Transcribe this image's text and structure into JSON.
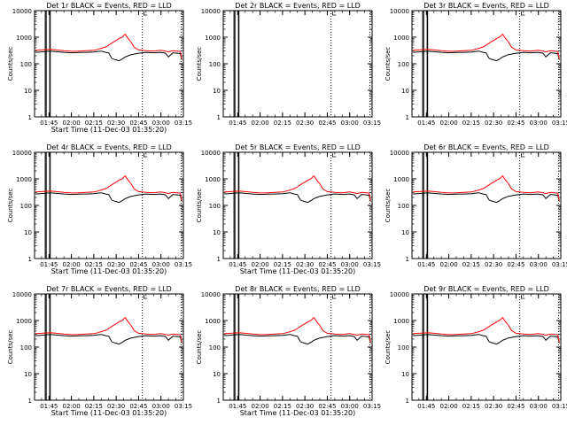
{
  "figure": {
    "panels": [
      {
        "title": "Det 1r  BLACK = Events, RED = LLD",
        "show_xlabel": true,
        "has_data": true,
        "has_red": true
      },
      {
        "title": "Det 2r  BLACK = Events, RED = LLD",
        "show_xlabel": false,
        "has_data": false,
        "has_red": false
      },
      {
        "title": "Det 3r  BLACK = Events, RED = LLD",
        "show_xlabel": false,
        "has_data": true,
        "has_red": true
      },
      {
        "title": "Det 4r  BLACK = Events, RED = LLD",
        "show_xlabel": true,
        "has_data": true,
        "has_red": true
      },
      {
        "title": "Det 5r  BLACK = Events, RED = LLD",
        "show_xlabel": true,
        "has_data": true,
        "has_red": true
      },
      {
        "title": "Det 6r  BLACK = Events, RED = LLD",
        "show_xlabel": false,
        "has_data": true,
        "has_red": true
      },
      {
        "title": "Det 7r  BLACK = Events, RED = LLD",
        "show_xlabel": true,
        "has_data": true,
        "has_red": true
      },
      {
        "title": "Det 8r  BLACK = Events, RED = LLD",
        "show_xlabel": true,
        "has_data": true,
        "has_red": true
      },
      {
        "title": "Det 9r  BLACK = Events, RED = LLD",
        "show_xlabel": false,
        "has_data": true,
        "has_red": true
      }
    ],
    "ylabel": "Counts/sec",
    "xlabel": "Start Time (11-Dec-03 01:35:20)",
    "colors": {
      "events": "#000000",
      "lld": "#ff0000",
      "axes": "#000000"
    }
  },
  "chart_data": {
    "type": "line",
    "yscale": "log",
    "ylim": [
      1,
      10000
    ],
    "ytick_labels": [
      "1",
      "10",
      "100",
      "1000",
      "10000"
    ],
    "xlim": [
      "01:35:20",
      "03:15:00"
    ],
    "xtick_labels": [
      "01:45",
      "02:00",
      "02:15",
      "02:30",
      "02:45",
      "03:00",
      "03:15"
    ],
    "grid": false,
    "vertical_markers": [
      {
        "time": "01:42:30",
        "style": "solid"
      },
      {
        "time": "01:43:10",
        "style": "solid"
      },
      {
        "time": "01:45:30",
        "style": "solid"
      },
      {
        "time": "01:45:50",
        "style": "solid"
      },
      {
        "time": "02:47:30",
        "style": "dotted"
      },
      {
        "time": "03:13:30",
        "style": "dotted"
      }
    ],
    "series": [
      {
        "name": "Events",
        "color": "#000000",
        "x": [
          "01:36:00",
          "01:40:00",
          "01:43:00",
          "01:46:00",
          "01:50:00",
          "01:55:00",
          "02:00:00",
          "02:05:00",
          "02:10:00",
          "02:15:00",
          "02:18:00",
          "02:20:00",
          "02:23:00",
          "02:25:00",
          "02:27:00",
          "02:28:00",
          "02:30:00",
          "02:32:00",
          "02:34:00",
          "02:36:00",
          "02:38:00",
          "02:40:00",
          "02:42:00",
          "02:45:00",
          "02:50:00",
          "02:55:00",
          "03:00:00",
          "03:03:00",
          "03:05:00",
          "03:08:00",
          "03:11:00",
          "03:13:00",
          "03:14:00"
        ],
        "y": [
          270,
          280,
          290,
          300,
          285,
          270,
          260,
          265,
          270,
          275,
          290,
          300,
          270,
          255,
          160,
          150,
          140,
          130,
          150,
          180,
          200,
          220,
          230,
          250,
          270,
          260,
          270,
          250,
          180,
          260,
          250,
          240,
          140
        ]
      },
      {
        "name": "LLD",
        "color": "#ff0000",
        "x": [
          "01:36:00",
          "01:40:00",
          "01:43:00",
          "01:46:00",
          "01:50:00",
          "01:55:00",
          "02:00:00",
          "02:05:00",
          "02:10:00",
          "02:15:00",
          "02:18:00",
          "02:20:00",
          "02:23:00",
          "02:25:00",
          "02:27:00",
          "02:28:00",
          "02:30:00",
          "02:32:00",
          "02:34:00",
          "02:36:00",
          "02:38:00",
          "02:40:00",
          "02:42:00",
          "02:45:00",
          "02:50:00",
          "02:55:00",
          "03:00:00",
          "03:03:00",
          "03:05:00",
          "03:08:00",
          "03:11:00",
          "03:13:00",
          "03:14:00"
        ],
        "y": [
          320,
          330,
          340,
          350,
          330,
          310,
          295,
          300,
          310,
          320,
          350,
          380,
          430,
          500,
          600,
          650,
          750,
          900,
          1000,
          1300,
          900,
          650,
          420,
          330,
          310,
          300,
          320,
          300,
          280,
          310,
          300,
          290,
          150
        ]
      }
    ]
  }
}
